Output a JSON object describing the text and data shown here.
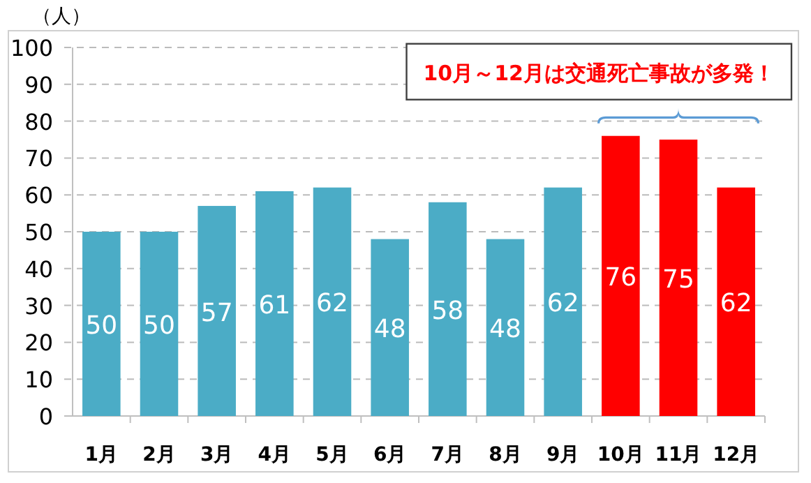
{
  "chart_data": {
    "type": "bar",
    "ylabel": "（人）",
    "categories": [
      "1月",
      "2月",
      "3月",
      "4月",
      "5月",
      "6月",
      "7月",
      "8月",
      "9月",
      "10月",
      "11月",
      "12月"
    ],
    "values": [
      50,
      50,
      57,
      61,
      62,
      48,
      58,
      48,
      62,
      76,
      75,
      62
    ],
    "colors": [
      "#4bacc6",
      "#4bacc6",
      "#4bacc6",
      "#4bacc6",
      "#4bacc6",
      "#4bacc6",
      "#4bacc6",
      "#4bacc6",
      "#4bacc6",
      "#ff0000",
      "#ff0000",
      "#ff0000"
    ],
    "ylim": [
      0,
      100
    ],
    "yticks": [
      0,
      10,
      20,
      30,
      40,
      50,
      60,
      70,
      80,
      90,
      100
    ],
    "grid": "y",
    "data_labels": true,
    "annotations": [
      {
        "text": "10月～12月は交通死亡事故が多発！",
        "x": "11月",
        "y": 76
      }
    ]
  }
}
